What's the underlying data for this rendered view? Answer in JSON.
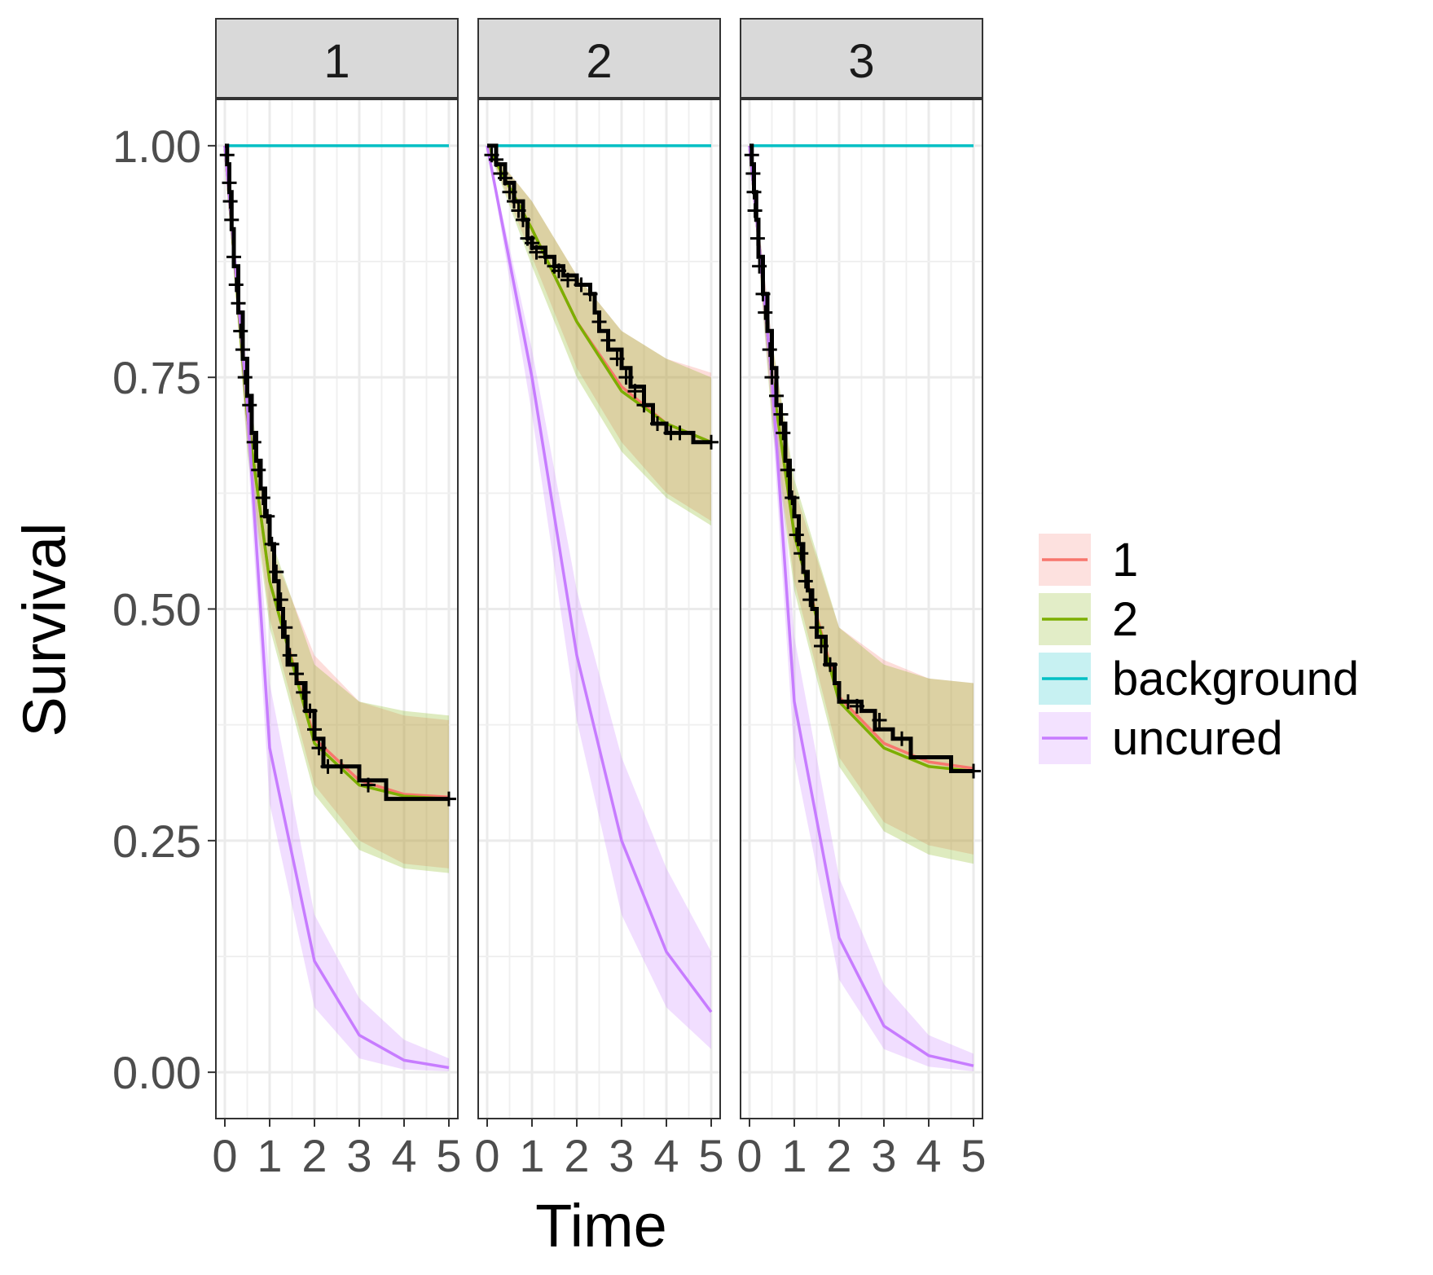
{
  "chart_data": {
    "type": "line",
    "xlabel": "Time",
    "ylabel": "Survival",
    "xlim": [
      -0.2,
      5.2
    ],
    "ylim": [
      -0.05,
      1.05
    ],
    "x_ticks": [
      0,
      1,
      2,
      3,
      4,
      5
    ],
    "y_ticks": [
      0,
      0.25,
      0.5,
      0.75,
      1
    ],
    "y_tick_labels": [
      "0.00",
      "0.25",
      "0.50",
      "0.75",
      "1.00"
    ],
    "grid": true,
    "legend_position": "right",
    "legend": [
      {
        "key": "1",
        "label": "1",
        "color": "#F8766D"
      },
      {
        "key": "2",
        "label": "2",
        "color": "#7CAE00"
      },
      {
        "key": "background",
        "label": "background",
        "color": "#00BFC4"
      },
      {
        "key": "uncured",
        "label": "uncured",
        "color": "#C77CFF"
      }
    ],
    "km_color": "#000000",
    "panels": [
      {
        "label": "1",
        "series": {
          "background": {
            "x": [
              0,
              5
            ],
            "y": [
              1,
              1
            ]
          },
          "1": {
            "x": [
              0,
              0.5,
              1,
              2,
              3,
              4,
              5
            ],
            "y": [
              1,
              0.71,
              0.53,
              0.36,
              0.315,
              0.3,
              0.297
            ],
            "lower": [
              1,
              0.68,
              0.49,
              0.31,
              0.25,
              0.225,
              0.22
            ],
            "upper": [
              1,
              0.74,
              0.57,
              0.45,
              0.4,
              0.385,
              0.38
            ]
          },
          "2": {
            "x": [
              0,
              0.5,
              1,
              2,
              3,
              4,
              5
            ],
            "y": [
              1,
              0.71,
              0.53,
              0.355,
              0.31,
              0.298,
              0.295
            ],
            "lower": [
              1,
              0.67,
              0.48,
              0.3,
              0.24,
              0.22,
              0.215
            ],
            "upper": [
              1,
              0.75,
              0.58,
              0.44,
              0.4,
              0.39,
              0.385
            ]
          },
          "uncured": {
            "x": [
              0,
              0.5,
              1,
              2,
              3,
              4,
              5
            ],
            "y": [
              1,
              0.72,
              0.35,
              0.12,
              0.04,
              0.013,
              0.005
            ],
            "lower": [
              1,
              0.68,
              0.29,
              0.07,
              0.015,
              0.003,
              0.001
            ],
            "upper": [
              1,
              0.76,
              0.42,
              0.17,
              0.08,
              0.035,
              0.015
            ]
          },
          "km": [
            [
              0,
              1
            ],
            [
              0.05,
              0.98
            ],
            [
              0.1,
              0.95
            ],
            [
              0.15,
              0.91
            ],
            [
              0.2,
              0.87
            ],
            [
              0.3,
              0.82
            ],
            [
              0.4,
              0.77
            ],
            [
              0.5,
              0.73
            ],
            [
              0.6,
              0.69
            ],
            [
              0.7,
              0.66
            ],
            [
              0.8,
              0.63
            ],
            [
              0.9,
              0.6
            ],
            [
              1.0,
              0.57
            ],
            [
              1.1,
              0.53
            ],
            [
              1.2,
              0.5
            ],
            [
              1.3,
              0.47
            ],
            [
              1.4,
              0.44
            ],
            [
              1.6,
              0.42
            ],
            [
              1.8,
              0.39
            ],
            [
              2.0,
              0.36
            ],
            [
              2.2,
              0.33
            ],
            [
              2.5,
              0.33
            ],
            [
              3.0,
              0.315
            ],
            [
              3.6,
              0.295
            ],
            [
              5,
              0.295
            ]
          ],
          "censor": [
            [
              0.05,
              0.99
            ],
            [
              0.1,
              0.96
            ],
            [
              0.12,
              0.94
            ],
            [
              0.15,
              0.92
            ],
            [
              0.2,
              0.88
            ],
            [
              0.25,
              0.85
            ],
            [
              0.3,
              0.83
            ],
            [
              0.35,
              0.8
            ],
            [
              0.4,
              0.78
            ],
            [
              0.45,
              0.75
            ],
            [
              0.55,
              0.72
            ],
            [
              0.65,
              0.68
            ],
            [
              0.75,
              0.65
            ],
            [
              0.85,
              0.62
            ],
            [
              0.95,
              0.6
            ],
            [
              1.05,
              0.57
            ],
            [
              1.15,
              0.54
            ],
            [
              1.25,
              0.51
            ],
            [
              1.35,
              0.48
            ],
            [
              1.45,
              0.45
            ],
            [
              1.6,
              0.43
            ],
            [
              1.75,
              0.41
            ],
            [
              1.9,
              0.39
            ],
            [
              2.0,
              0.37
            ],
            [
              2.1,
              0.35
            ],
            [
              2.3,
              0.33
            ],
            [
              2.6,
              0.33
            ],
            [
              3.2,
              0.31
            ],
            [
              5,
              0.295
            ]
          ]
        }
      },
      {
        "label": "2",
        "series": {
          "background": {
            "x": [
              0,
              5
            ],
            "y": [
              1,
              1
            ]
          },
          "1": {
            "x": [
              0,
              1,
              2,
              3,
              4,
              5
            ],
            "y": [
              1,
              0.91,
              0.81,
              0.74,
              0.7,
              0.68
            ],
            "lower": [
              1,
              0.88,
              0.76,
              0.68,
              0.625,
              0.595
            ],
            "upper": [
              1,
              0.94,
              0.86,
              0.8,
              0.77,
              0.755
            ]
          },
          "2": {
            "x": [
              0,
              1,
              2,
              3,
              4,
              5
            ],
            "y": [
              1,
              0.91,
              0.81,
              0.735,
              0.7,
              0.68
            ],
            "lower": [
              1,
              0.87,
              0.75,
              0.67,
              0.62,
              0.59
            ],
            "upper": [
              1,
              0.94,
              0.86,
              0.8,
              0.77,
              0.75
            ]
          },
          "uncured": {
            "x": [
              0,
              1,
              2,
              3,
              4,
              5
            ],
            "y": [
              1,
              0.75,
              0.45,
              0.25,
              0.13,
              0.065
            ],
            "lower": [
              1,
              0.71,
              0.38,
              0.17,
              0.07,
              0.025
            ],
            "upper": [
              1,
              0.78,
              0.52,
              0.34,
              0.22,
              0.13
            ]
          },
          "km": [
            [
              0,
              1
            ],
            [
              0.2,
              0.98
            ],
            [
              0.4,
              0.96
            ],
            [
              0.6,
              0.94
            ],
            [
              0.8,
              0.92
            ],
            [
              0.9,
              0.9
            ],
            [
              1.0,
              0.89
            ],
            [
              1.3,
              0.88
            ],
            [
              1.5,
              0.87
            ],
            [
              1.7,
              0.86
            ],
            [
              2.0,
              0.85
            ],
            [
              2.3,
              0.84
            ],
            [
              2.4,
              0.82
            ],
            [
              2.5,
              0.8
            ],
            [
              2.7,
              0.78
            ],
            [
              3.0,
              0.76
            ],
            [
              3.2,
              0.74
            ],
            [
              3.5,
              0.72
            ],
            [
              3.7,
              0.7
            ],
            [
              4.0,
              0.69
            ],
            [
              4.5,
              0.69
            ],
            [
              4.6,
              0.68
            ],
            [
              5,
              0.68
            ]
          ],
          "censor": [
            [
              0.1,
              0.99
            ],
            [
              0.2,
              0.985
            ],
            [
              0.3,
              0.97
            ],
            [
              0.4,
              0.965
            ],
            [
              0.5,
              0.95
            ],
            [
              0.6,
              0.94
            ],
            [
              0.7,
              0.93
            ],
            [
              0.8,
              0.92
            ],
            [
              0.9,
              0.9
            ],
            [
              1.0,
              0.895
            ],
            [
              1.1,
              0.885
            ],
            [
              1.3,
              0.88
            ],
            [
              1.5,
              0.87
            ],
            [
              1.6,
              0.865
            ],
            [
              1.8,
              0.855
            ],
            [
              2.1,
              0.85
            ],
            [
              2.3,
              0.84
            ],
            [
              2.5,
              0.81
            ],
            [
              2.7,
              0.79
            ],
            [
              2.9,
              0.77
            ],
            [
              3.1,
              0.75
            ],
            [
              3.3,
              0.735
            ],
            [
              3.5,
              0.72
            ],
            [
              3.8,
              0.7
            ],
            [
              4.1,
              0.69
            ],
            [
              4.3,
              0.69
            ],
            [
              5,
              0.68
            ]
          ]
        }
      },
      {
        "label": "3",
        "series": {
          "background": {
            "x": [
              0,
              5
            ],
            "y": [
              1,
              1
            ]
          },
          "1": {
            "x": [
              0,
              0.5,
              1,
              2,
              3,
              4,
              5
            ],
            "y": [
              1,
              0.75,
              0.58,
              0.405,
              0.355,
              0.335,
              0.328
            ],
            "lower": [
              1,
              0.71,
              0.53,
              0.34,
              0.27,
              0.245,
              0.235
            ],
            "upper": [
              1,
              0.79,
              0.63,
              0.48,
              0.445,
              0.425,
              0.42
            ]
          },
          "2": {
            "x": [
              0,
              0.5,
              1,
              2,
              3,
              4,
              5
            ],
            "y": [
              1,
              0.75,
              0.58,
              0.4,
              0.35,
              0.33,
              0.325
            ],
            "lower": [
              1,
              0.7,
              0.52,
              0.33,
              0.26,
              0.235,
              0.225
            ],
            "upper": [
              1,
              0.79,
              0.64,
              0.48,
              0.44,
              0.425,
              0.42
            ]
          },
          "uncured": {
            "x": [
              0,
              0.5,
              1,
              2,
              3,
              4,
              5
            ],
            "y": [
              1,
              0.75,
              0.4,
              0.145,
              0.05,
              0.018,
              0.007
            ],
            "lower": [
              1,
              0.71,
              0.34,
              0.1,
              0.025,
              0.006,
              0.001
            ],
            "upper": [
              1,
              0.79,
              0.47,
              0.21,
              0.095,
              0.04,
              0.02
            ]
          },
          "km": [
            [
              0,
              1
            ],
            [
              0.05,
              0.98
            ],
            [
              0.1,
              0.95
            ],
            [
              0.15,
              0.92
            ],
            [
              0.2,
              0.88
            ],
            [
              0.3,
              0.84
            ],
            [
              0.4,
              0.8
            ],
            [
              0.5,
              0.76
            ],
            [
              0.6,
              0.72
            ],
            [
              0.7,
              0.7
            ],
            [
              0.8,
              0.66
            ],
            [
              0.9,
              0.62
            ],
            [
              1.0,
              0.6
            ],
            [
              1.1,
              0.57
            ],
            [
              1.2,
              0.54
            ],
            [
              1.3,
              0.52
            ],
            [
              1.4,
              0.5
            ],
            [
              1.5,
              0.47
            ],
            [
              1.7,
              0.44
            ],
            [
              1.9,
              0.42
            ],
            [
              2.0,
              0.4
            ],
            [
              2.5,
              0.39
            ],
            [
              2.8,
              0.37
            ],
            [
              3.2,
              0.36
            ],
            [
              3.6,
              0.34
            ],
            [
              4.5,
              0.325
            ],
            [
              5,
              0.325
            ]
          ],
          "censor": [
            [
              0.05,
              0.99
            ],
            [
              0.08,
              0.97
            ],
            [
              0.1,
              0.95
            ],
            [
              0.12,
              0.93
            ],
            [
              0.18,
              0.9
            ],
            [
              0.22,
              0.87
            ],
            [
              0.3,
              0.84
            ],
            [
              0.35,
              0.82
            ],
            [
              0.45,
              0.78
            ],
            [
              0.5,
              0.75
            ],
            [
              0.6,
              0.73
            ],
            [
              0.7,
              0.71
            ],
            [
              0.75,
              0.69
            ],
            [
              0.85,
              0.65
            ],
            [
              0.95,
              0.62
            ],
            [
              1.05,
              0.58
            ],
            [
              1.15,
              0.56
            ],
            [
              1.25,
              0.53
            ],
            [
              1.35,
              0.51
            ],
            [
              1.5,
              0.48
            ],
            [
              1.6,
              0.46
            ],
            [
              1.8,
              0.44
            ],
            [
              2.2,
              0.4
            ],
            [
              2.4,
              0.395
            ],
            [
              2.9,
              0.38
            ],
            [
              3.4,
              0.36
            ],
            [
              5,
              0.325
            ]
          ]
        }
      }
    ]
  }
}
